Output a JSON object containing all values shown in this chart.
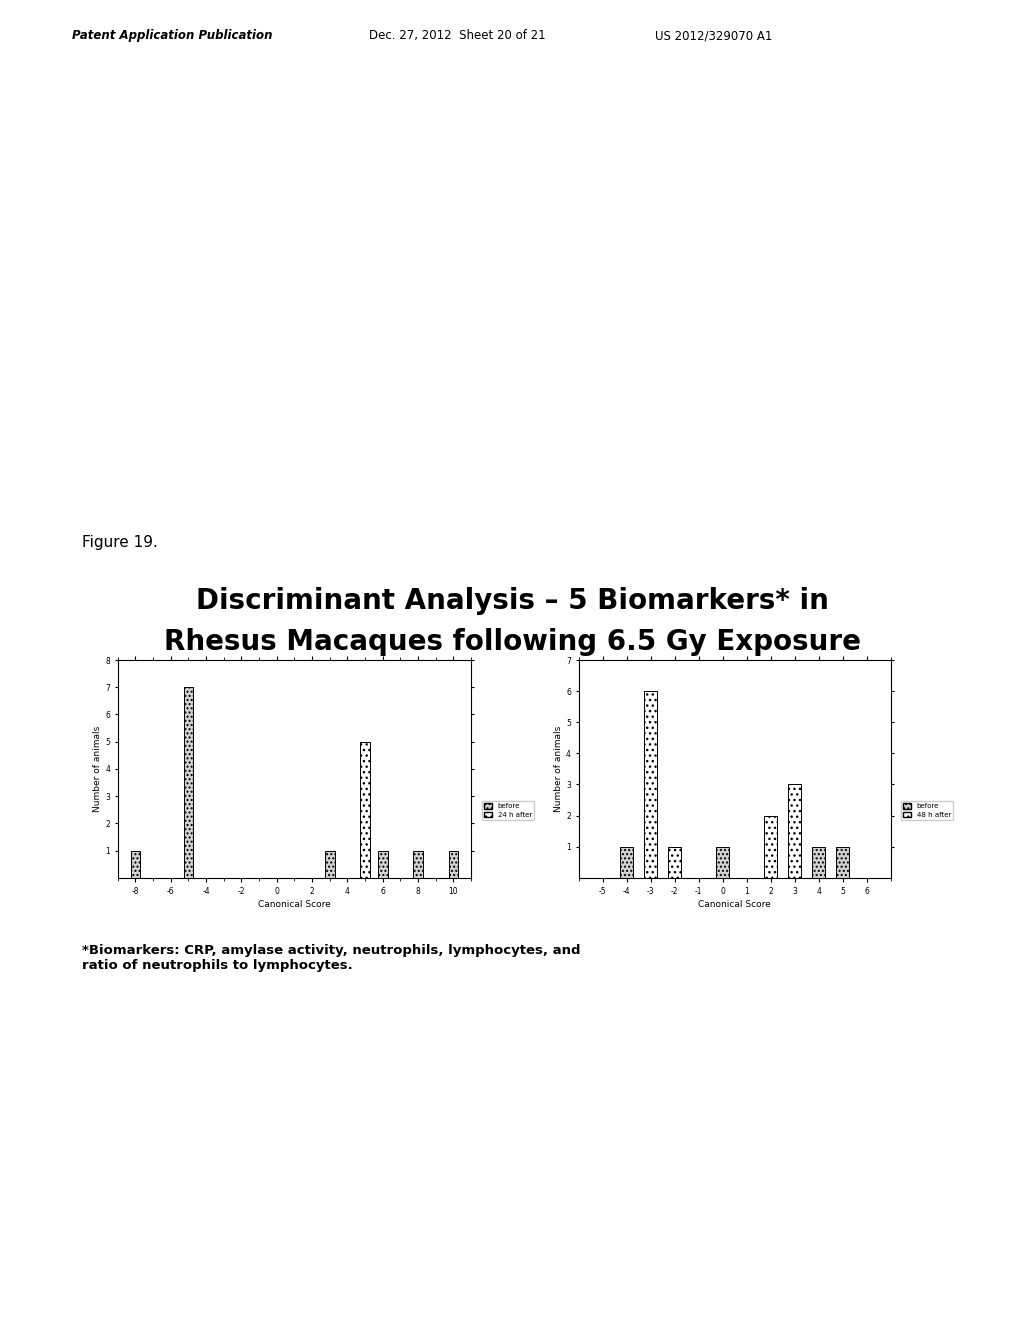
{
  "title_line1": "Discriminant Analysis – 5 Biomarkers* in",
  "title_line2": "Rhesus Macaques following 6.5 Gy Exposure",
  "footnote": "*Biomarkers: CRP, amylase activity, neutrophils, lymphocytes, and\nratio of neutrophils to lymphocytes.",
  "header_left": "Patent Application Publication",
  "header_center": "Dec. 27, 2012  Sheet 20 of 21",
  "header_right": "US 2012/329070 A1",
  "figure_label": "Figure 19.",
  "chart1": {
    "xlabel": "Canonical Score",
    "ylabel": "Number of animals",
    "xlim": [
      -9,
      11
    ],
    "ylim": [
      0,
      8
    ],
    "xticks": [
      -8,
      -6,
      -4,
      -2,
      0,
      2,
      4,
      6,
      8,
      10
    ],
    "yticks": [
      1,
      2,
      3,
      4,
      5,
      6,
      7,
      8
    ],
    "legend1": "before",
    "legend2": "24 h after",
    "bars_before": [
      {
        "x": -8,
        "height": 1
      },
      {
        "x": -5,
        "height": 7
      },
      {
        "x": 3,
        "height": 1
      },
      {
        "x": 6,
        "height": 1
      },
      {
        "x": 8,
        "height": 1
      },
      {
        "x": 10,
        "height": 1
      }
    ],
    "bars_after": [
      {
        "x": 5,
        "height": 5
      }
    ]
  },
  "chart2": {
    "xlabel": "Canonical Score",
    "ylabel": "Number of animals",
    "xlim": [
      -6,
      7
    ],
    "ylim": [
      0,
      7
    ],
    "xticks": [
      -5,
      -4,
      -3,
      -2,
      -1,
      0,
      1,
      2,
      3,
      4,
      5,
      6
    ],
    "yticks": [
      1,
      2,
      3,
      4,
      5,
      6,
      7
    ],
    "legend1": "before",
    "legend2": "48 h after",
    "bars_before": [
      {
        "x": -4,
        "height": 1
      },
      {
        "x": -2,
        "height": 1
      },
      {
        "x": 0,
        "height": 1
      },
      {
        "x": 2,
        "height": 2
      },
      {
        "x": 4,
        "height": 1
      },
      {
        "x": 5,
        "height": 1
      }
    ],
    "bars_after": [
      {
        "x": -3,
        "height": 6
      },
      {
        "x": -2,
        "height": 1
      },
      {
        "x": 2,
        "height": 2
      },
      {
        "x": 3,
        "height": 3
      }
    ]
  }
}
